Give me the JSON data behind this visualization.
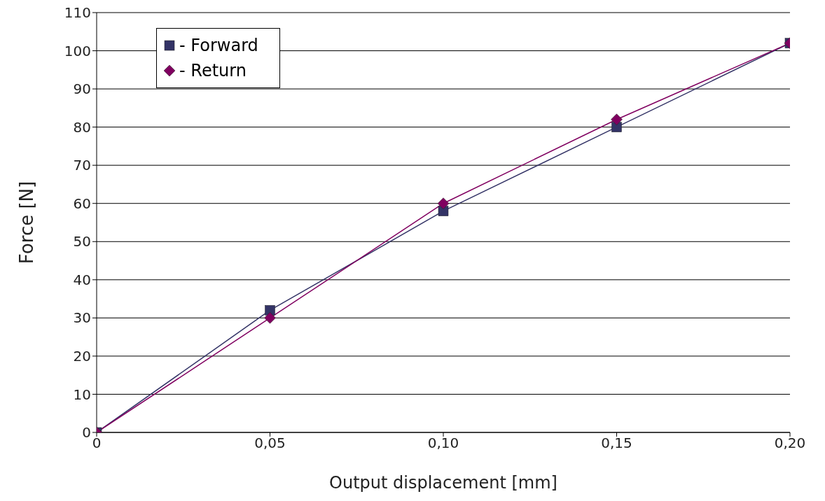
{
  "chart_data": {
    "type": "line",
    "xlabel": "Output displacement [mm]",
    "ylabel": "Force [N]",
    "x": [
      0,
      0.05,
      0.1,
      0.15,
      0.2
    ],
    "series": [
      {
        "name": "- Forward",
        "color": "#333366",
        "marker": "square",
        "values": [
          0,
          32,
          58,
          80,
          102
        ]
      },
      {
        "name": "- Return",
        "color": "#800060",
        "marker": "diamond",
        "values": [
          0,
          30,
          60,
          82,
          102
        ]
      }
    ],
    "xlim": [
      0,
      0.2
    ],
    "xticks": [
      0,
      {
        "value": 0.05,
        "label": "0,05"
      },
      {
        "value": 0.1,
        "label": "0,10"
      },
      {
        "value": 0.15,
        "label": "0,15"
      },
      {
        "value": 0.2,
        "label": "0,20"
      }
    ],
    "ylim": [
      0,
      110
    ],
    "yticks": [
      0,
      10,
      20,
      30,
      40,
      50,
      60,
      70,
      80,
      90,
      100,
      110
    ],
    "grid": "y",
    "legend": "top left",
    "line_style": "solid"
  }
}
